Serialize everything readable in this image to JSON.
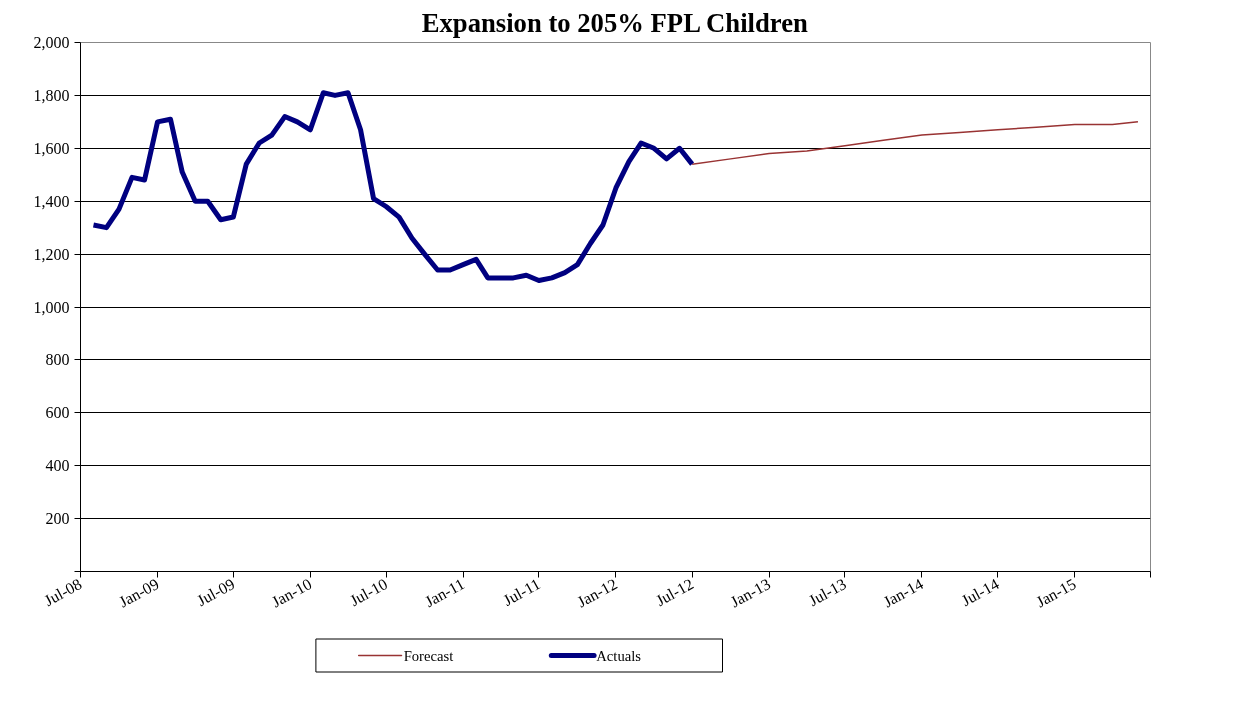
{
  "chart_data": {
    "type": "line",
    "title": "Expansion to 205% FPL Children",
    "xlim": [
      "2008-07",
      "2015-07"
    ],
    "xticks": [
      {
        "value": "2008-07",
        "label": "Jul-08"
      },
      {
        "value": "2009-01",
        "label": "Jan-09"
      },
      {
        "value": "2009-07",
        "label": "Jul-09"
      },
      {
        "value": "2010-01",
        "label": "Jan-10"
      },
      {
        "value": "2010-07",
        "label": "Jul-10"
      },
      {
        "value": "2011-01",
        "label": "Jan-11"
      },
      {
        "value": "2011-07",
        "label": "Jul-11"
      },
      {
        "value": "2012-01",
        "label": "Jan-12"
      },
      {
        "value": "2012-07",
        "label": "Jul-12"
      },
      {
        "value": "2013-01",
        "label": "Jan-13"
      },
      {
        "value": "2013-07",
        "label": "Jul-13"
      },
      {
        "value": "2014-01",
        "label": "Jan-14"
      },
      {
        "value": "2014-07",
        "label": "Jul-14"
      },
      {
        "value": "2015-01",
        "label": "Jan-15"
      },
      {
        "value": "2015-07",
        "label": null
      }
    ],
    "ylim": [
      0,
      2000
    ],
    "yticks": [
      {
        "value": 0,
        "label": null
      },
      {
        "value": 200,
        "label": "200"
      },
      {
        "value": 400,
        "label": "400"
      },
      {
        "value": 600,
        "label": "600"
      },
      {
        "value": 800,
        "label": "800"
      },
      {
        "value": 1000,
        "label": "1,000"
      },
      {
        "value": 1200,
        "label": "1,200"
      },
      {
        "value": 1400,
        "label": "1,400"
      },
      {
        "value": 1600,
        "label": "1,600"
      },
      {
        "value": 1800,
        "label": "1,800"
      },
      {
        "value": 2000,
        "label": "2,000"
      }
    ],
    "grid": "y",
    "legend": "bottom",
    "line_style": "solid",
    "marker": "none",
    "series": [
      {
        "name": "Forecast",
        "color": "#993333",
        "x": [
          "2012-07",
          "2012-10",
          "2013-01",
          "2013-04",
          "2013-07",
          "2013-10",
          "2014-01",
          "2014-04",
          "2014-07",
          "2014-10",
          "2015-01",
          "2015-04",
          "2015-06"
        ],
        "values": [
          1540,
          1560,
          1580,
          1590,
          1610,
          1630,
          1650,
          1660,
          1670,
          1680,
          1690,
          1690,
          1700
        ]
      },
      {
        "name": "Actuals",
        "color": "#000080",
        "x": [
          "2008-08",
          "2008-09",
          "2008-10",
          "2008-11",
          "2008-12",
          "2009-01",
          "2009-02",
          "2009-03",
          "2009-04",
          "2009-05",
          "2009-06",
          "2009-07",
          "2009-08",
          "2009-09",
          "2009-10",
          "2009-11",
          "2009-12",
          "2010-01",
          "2010-02",
          "2010-03",
          "2010-04",
          "2010-05",
          "2010-06",
          "2010-07",
          "2010-08",
          "2010-09",
          "2010-10",
          "2010-11",
          "2010-12",
          "2011-01",
          "2011-02",
          "2011-03",
          "2011-04",
          "2011-05",
          "2011-06",
          "2011-07",
          "2011-08",
          "2011-09",
          "2011-10",
          "2011-11",
          "2011-12",
          "2012-01",
          "2012-02",
          "2012-03",
          "2012-04",
          "2012-05",
          "2012-06",
          "2012-07"
        ],
        "values": [
          1310,
          1300,
          1370,
          1490,
          1480,
          1700,
          1710,
          1510,
          1400,
          1400,
          1330,
          1340,
          1540,
          1620,
          1650,
          1720,
          1700,
          1670,
          1810,
          1800,
          1810,
          1670,
          1410,
          1380,
          1340,
          1260,
          1200,
          1140,
          1140,
          1160,
          1180,
          1110,
          1110,
          1110,
          1120,
          1100,
          1110,
          1130,
          1160,
          1240,
          1310,
          1450,
          1550,
          1620,
          1600,
          1560,
          1600,
          1540
        ]
      }
    ]
  }
}
